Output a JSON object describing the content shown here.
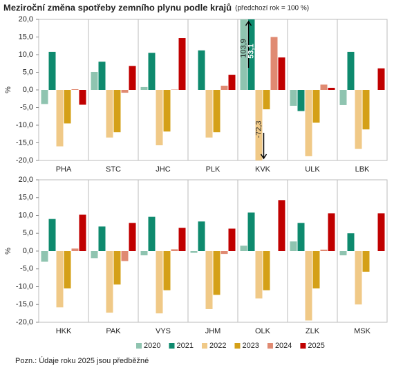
{
  "chart_data": [
    {
      "type": "bar",
      "title": "Meziroční změna spotřeby zemního plynu podle krajů",
      "subtitle": "(předchozí rok = 100 %)",
      "ylabel": "%",
      "categories": [
        "PHA",
        "STC",
        "JHC",
        "PLK",
        "KVK",
        "ULK",
        "LBK"
      ],
      "series": [
        {
          "name": "2020",
          "color": "#8fc4b0",
          "values": [
            -4,
            5.1,
            0.8,
            0,
            103.9,
            -4.5,
            -4.3
          ],
          "value_labels": [
            null,
            null,
            null,
            null,
            "103,9",
            null,
            null
          ]
        },
        {
          "name": "2021",
          "color": "#0e8a6e",
          "values": [
            10.8,
            8,
            10.5,
            11.2,
            53.1,
            -6,
            10.8
          ],
          "value_labels": [
            null,
            null,
            null,
            null,
            "53,1",
            null,
            null
          ]
        },
        {
          "name": "2022",
          "color": "#f0c987",
          "values": [
            -16,
            -13.5,
            -15.7,
            -13.5,
            -72.3,
            -18.8,
            -16.7
          ],
          "value_labels": [
            null,
            null,
            null,
            null,
            "-72,3",
            null,
            null
          ]
        },
        {
          "name": "2023",
          "color": "#d4a017",
          "values": [
            -9.5,
            -12,
            -11.8,
            -12,
            -5.5,
            -9.3,
            -11.2
          ]
        },
        {
          "name": "2024",
          "color": "#e08a72",
          "values": [
            0.2,
            -0.8,
            0.1,
            1.2,
            15,
            1.5,
            0
          ]
        },
        {
          "name": "2025",
          "color": "#c00000",
          "values": [
            -4.2,
            6.8,
            14.7,
            4.3,
            9.2,
            0.6,
            6.1
          ]
        }
      ],
      "ylim": [
        -20,
        20
      ],
      "yticks": [
        {
          "value": 20,
          "label": "20,0"
        },
        {
          "value": 15,
          "label": "15,0"
        },
        {
          "value": 10,
          "label": "10,0"
        },
        {
          "value": 5,
          "label": "5,0"
        },
        {
          "value": 0,
          "label": "0,0"
        },
        {
          "value": -5,
          "label": "-5,0"
        },
        {
          "value": -10,
          "label": "-10,0"
        },
        {
          "value": -15,
          "label": "-15,0"
        },
        {
          "value": -20,
          "label": "-20,0"
        }
      ],
      "grid": false
    },
    {
      "type": "bar",
      "ylabel": "%",
      "categories": [
        "HKK",
        "PAK",
        "VYS",
        "JHM",
        "OLK",
        "ZLK",
        "MSK"
      ],
      "series": [
        {
          "name": "2020",
          "color": "#8fc4b0",
          "values": [
            -3,
            -2,
            -1.2,
            -0.5,
            1.5,
            2.7,
            -1.2
          ]
        },
        {
          "name": "2021",
          "color": "#0e8a6e",
          "values": [
            9,
            6.9,
            9.6,
            8.3,
            10.8,
            7.9,
            5
          ]
        },
        {
          "name": "2022",
          "color": "#f0c987",
          "values": [
            -15.8,
            -17.3,
            -17.5,
            -16.3,
            -13.3,
            -19.5,
            -15
          ]
        },
        {
          "name": "2023",
          "color": "#d4a017",
          "values": [
            -10.5,
            -9.4,
            -11,
            -12.3,
            -11,
            -10.5,
            -5.8
          ]
        },
        {
          "name": "2024",
          "color": "#e08a72",
          "values": [
            0.7,
            -2.8,
            0.5,
            -0.8,
            0,
            0.4,
            0
          ]
        },
        {
          "name": "2025",
          "color": "#c00000",
          "values": [
            10.2,
            7.9,
            6.5,
            6.3,
            14.3,
            10.6,
            10.6
          ]
        }
      ],
      "ylim": [
        -20,
        20
      ],
      "yticks": [
        {
          "value": 20,
          "label": "20,0"
        },
        {
          "value": 15,
          "label": "15,0"
        },
        {
          "value": 10,
          "label": "10,0"
        },
        {
          "value": 5,
          "label": "5,0"
        },
        {
          "value": 0,
          "label": "0,0"
        },
        {
          "value": -5,
          "label": "-5,0"
        },
        {
          "value": -10,
          "label": "-10,0"
        },
        {
          "value": -15,
          "label": "-15,0"
        },
        {
          "value": -20,
          "label": "-20,0"
        }
      ],
      "grid": false,
      "note": "Pozn.: Údaje roku 2025 jsou předběžné"
    }
  ]
}
